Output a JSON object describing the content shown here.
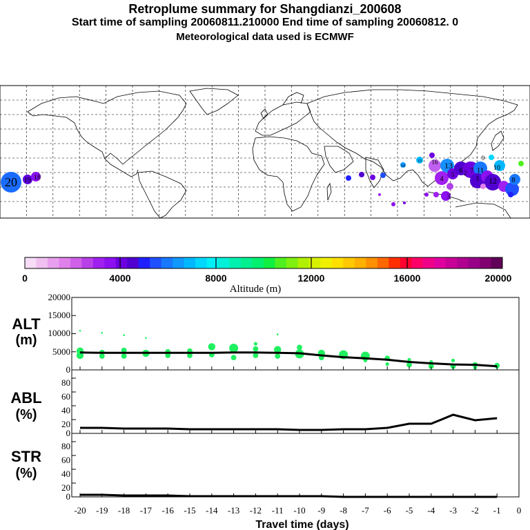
{
  "header": {
    "title": "Retroplume summary for Shangdianzi_200608",
    "subtitle": "Start time of sampling 20060811.210000     End time of sampling 20060812.     0",
    "met": "Meteorological data used is ECMWF"
  },
  "colorbar": {
    "label": "Altitude (m)",
    "ticks": [
      "0",
      "4000",
      "8000",
      "12000",
      "16000",
      "20000"
    ],
    "colors": [
      "#f6dcf6",
      "#f0c0f0",
      "#e8a0ee",
      "#e080ea",
      "#d060e8",
      "#b840e8",
      "#a020f0",
      "#8c10f0",
      "#6c00e0",
      "#5000d0",
      "#2020ff",
      "#2050ff",
      "#1878ff",
      "#1098ff",
      "#00b8ff",
      "#00d8ff",
      "#00f0f8",
      "#00f0d8",
      "#00f0b0",
      "#00f090",
      "#00f070",
      "#10f040",
      "#50f020",
      "#80f010",
      "#b0f000",
      "#d8f000",
      "#f0f000",
      "#ffe000",
      "#ffc800",
      "#ffb000",
      "#ff9000",
      "#ff6800",
      "#ff3000",
      "#ff0030",
      "#ff0068",
      "#f00088",
      "#e000a0",
      "#c80098",
      "#b00090",
      "#980088",
      "#800070",
      "#600058"
    ]
  },
  "map_labels": [
    "20",
    "19",
    "18",
    "16",
    "15",
    "14",
    "13",
    "12",
    "11",
    "10",
    "9",
    "8",
    "7",
    "6",
    "5",
    "4",
    "3",
    "2",
    "1"
  ],
  "panels": {
    "alt": {
      "label1": "ALT",
      "label2": "(m)",
      "yticks": [
        "20000",
        "15000",
        "10000",
        "5000",
        "0"
      ]
    },
    "abl": {
      "label1": "ABL",
      "label2": "(%)",
      "yticks": [
        "80",
        "60",
        "40",
        "20",
        "0"
      ]
    },
    "str": {
      "label1": "STR",
      "label2": "(%)",
      "yticks": [
        "80",
        "60",
        "40",
        "20",
        "0"
      ]
    }
  },
  "xaxis": {
    "ticks": [
      "-20",
      "-19",
      "-18",
      "-17",
      "-16",
      "-15",
      "-14",
      "-13",
      "-12",
      "-11",
      "-10",
      "-9",
      "-8",
      "-7",
      "-6",
      "-5",
      "-4",
      "-3",
      "-2",
      "-1",
      "0"
    ],
    "label": "Travel time (days)"
  },
  "chart_data": [
    {
      "type": "line",
      "title": "ALT (m)",
      "xlabel": "Travel time (days)",
      "ylabel": "ALT (m)",
      "ylim": [
        0,
        20000
      ],
      "xlim": [
        -20,
        0
      ],
      "x": [
        -20,
        -19,
        -18,
        -17,
        -16,
        -15,
        -14,
        -13,
        -12,
        -11,
        -10,
        -9,
        -8,
        -7,
        -6,
        -5,
        -4,
        -3,
        -2,
        -1
      ],
      "series": [
        {
          "name": "mean altitude",
          "values": [
            4800,
            4700,
            4700,
            4700,
            4700,
            4700,
            4700,
            4800,
            4800,
            4700,
            4600,
            4000,
            3500,
            3200,
            2800,
            2200,
            1800,
            1500,
            1400,
            1000
          ]
        }
      ],
      "points": [
        {
          "x": -20,
          "y": 5200,
          "s": 4
        },
        {
          "x": -20,
          "y": 4000,
          "s": 4
        },
        {
          "x": -20,
          "y": 10800,
          "s": 1
        },
        {
          "x": -19,
          "y": 4800,
          "s": 3
        },
        {
          "x": -19,
          "y": 3800,
          "s": 3
        },
        {
          "x": -19,
          "y": 10200,
          "s": 1
        },
        {
          "x": -18,
          "y": 5400,
          "s": 3
        },
        {
          "x": -18,
          "y": 3800,
          "s": 3
        },
        {
          "x": -18,
          "y": 9600,
          "s": 1
        },
        {
          "x": -17,
          "y": 4600,
          "s": 4
        },
        {
          "x": -17,
          "y": 8800,
          "s": 1
        },
        {
          "x": -16,
          "y": 5000,
          "s": 3
        },
        {
          "x": -16,
          "y": 4000,
          "s": 3
        },
        {
          "x": -15,
          "y": 5200,
          "s": 3
        },
        {
          "x": -15,
          "y": 4000,
          "s": 3
        },
        {
          "x": -14,
          "y": 6400,
          "s": 4
        },
        {
          "x": -14,
          "y": 4200,
          "s": 3
        },
        {
          "x": -13,
          "y": 6000,
          "s": 5
        },
        {
          "x": -13,
          "y": 3400,
          "s": 3
        },
        {
          "x": -12,
          "y": 7200,
          "s": 2
        },
        {
          "x": -12,
          "y": 5800,
          "s": 3
        },
        {
          "x": -12,
          "y": 4000,
          "s": 3
        },
        {
          "x": -11,
          "y": 9800,
          "s": 1
        },
        {
          "x": -11,
          "y": 5600,
          "s": 4
        },
        {
          "x": -11,
          "y": 3800,
          "s": 3
        },
        {
          "x": -10,
          "y": 6200,
          "s": 3
        },
        {
          "x": -10,
          "y": 4400,
          "s": 5
        },
        {
          "x": -9,
          "y": 4600,
          "s": 4
        },
        {
          "x": -9,
          "y": 3400,
          "s": 3
        },
        {
          "x": -8,
          "y": 4200,
          "s": 5
        },
        {
          "x": -7,
          "y": 3800,
          "s": 5
        },
        {
          "x": -7,
          "y": 2600,
          "s": 2
        },
        {
          "x": -6,
          "y": 3200,
          "s": 3
        },
        {
          "x": -6,
          "y": 1600,
          "s": 2
        },
        {
          "x": -5,
          "y": 2800,
          "s": 2
        },
        {
          "x": -5,
          "y": 1400,
          "s": 3
        },
        {
          "x": -4,
          "y": 2200,
          "s": 2
        },
        {
          "x": -4,
          "y": 1000,
          "s": 3
        },
        {
          "x": -3,
          "y": 2600,
          "s": 2
        },
        {
          "x": -3,
          "y": 1000,
          "s": 3
        },
        {
          "x": -2,
          "y": 1400,
          "s": 3
        },
        {
          "x": -2,
          "y": 600,
          "s": 2
        },
        {
          "x": -1,
          "y": 1200,
          "s": 3
        },
        {
          "x": -1,
          "y": 800,
          "s": 2
        }
      ]
    },
    {
      "type": "line",
      "title": "ABL (%)",
      "ylabel": "ABL (%)",
      "ylim": [
        0,
        90
      ],
      "x": [
        -20,
        -19,
        -18,
        -17,
        -16,
        -15,
        -14,
        -13,
        -12,
        -11,
        -10,
        -9,
        -8,
        -7,
        -6,
        -5,
        -4,
        -3,
        -2,
        -1
      ],
      "series": [
        {
          "name": "ABL",
          "values": [
            8,
            8,
            7,
            7,
            7,
            6,
            6,
            6,
            6,
            6,
            5,
            5,
            6,
            6,
            8,
            14,
            14,
            27,
            19,
            22
          ]
        }
      ]
    },
    {
      "type": "line",
      "title": "STR (%)",
      "ylabel": "STR (%)",
      "ylim": [
        0,
        90
      ],
      "x": [
        -20,
        -19,
        -18,
        -17,
        -16,
        -15,
        -14,
        -13,
        -12,
        -11,
        -10,
        -9,
        -8,
        -7,
        -6,
        -5,
        -4,
        -3,
        -2,
        -1
      ],
      "series": [
        {
          "name": "STR",
          "values": [
            3,
            3,
            2,
            2,
            2,
            1,
            1,
            1,
            1,
            1,
            1,
            1,
            0,
            0,
            0,
            0,
            0,
            0,
            0,
            0
          ]
        }
      ]
    }
  ]
}
